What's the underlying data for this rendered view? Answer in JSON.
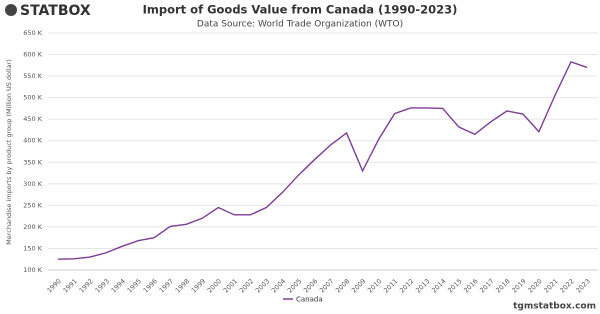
{
  "chart_data": {
    "type": "line",
    "brand": "STATBOX",
    "title": "Import of Goods Value from Canada (1990-2023)",
    "subtitle": "Data Source: World Trade Organization (WTO)",
    "ylabel": "Merchandise imports by product group (Million US dollar)",
    "website": "tgmstatbox.com",
    "categories": [
      "1990",
      "1991",
      "1992",
      "1993",
      "1994",
      "1995",
      "1996",
      "1997",
      "1998",
      "1999",
      "2000",
      "2001",
      "2002",
      "2003",
      "2004",
      "2005",
      "2006",
      "2007",
      "2008",
      "2009",
      "2010",
      "2011",
      "2012",
      "2013",
      "2014",
      "2015",
      "2016",
      "2017",
      "2018",
      "2019",
      "2020",
      "2021",
      "2022",
      "2023"
    ],
    "series": [
      {
        "name": "Canada",
        "color": "#7d3c98",
        "values": [
          125000,
          126000,
          130000,
          140000,
          155000,
          168000,
          175000,
          201000,
          206000,
          220000,
          245000,
          228000,
          228000,
          245000,
          280000,
          320000,
          356000,
          390000,
          418000,
          330000,
          403000,
          463000,
          476000,
          476000,
          475000,
          432000,
          415000,
          444000,
          469000,
          462000,
          421000,
          505000,
          583000,
          570000
        ]
      }
    ],
    "ylim": [
      100000,
      650000
    ],
    "yticks": [
      {
        "value": 100000,
        "label": "100 K"
      },
      {
        "value": 150000,
        "label": "150 K"
      },
      {
        "value": 200000,
        "label": "200 K"
      },
      {
        "value": 250000,
        "label": "250 K"
      },
      {
        "value": 300000,
        "label": "300 K"
      },
      {
        "value": 350000,
        "label": "350 K"
      },
      {
        "value": 400000,
        "label": "400 K"
      },
      {
        "value": 450000,
        "label": "450 K"
      },
      {
        "value": 500000,
        "label": "500 K"
      },
      {
        "value": 550000,
        "label": "550 K"
      },
      {
        "value": 600000,
        "label": "600 K"
      },
      {
        "value": 650000,
        "label": "650 K"
      }
    ],
    "grid": true
  }
}
